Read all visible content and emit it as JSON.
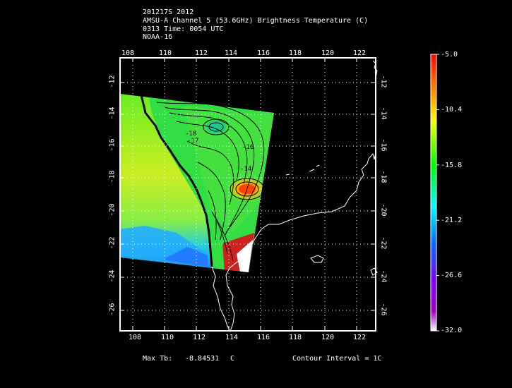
{
  "header": {
    "line1": "201217S 2012",
    "line2": "AMSU-A Channel 5 (53.6GHz) Brightness Temperature (C)",
    "line3": "0313 Time: 0054 UTC",
    "line4": "NOAA-16"
  },
  "map": {
    "lon_ticks": [
      "108",
      "110",
      "112",
      "114",
      "116",
      "118",
      "120",
      "122"
    ],
    "lat_ticks": [
      "-12",
      "-14",
      "-16",
      "-18",
      "-20",
      "-22",
      "-24",
      "-26"
    ],
    "contour_labels": [
      "-18",
      "-17",
      "-16",
      "-14"
    ],
    "colors": {
      "frame": "#ffffff",
      "background": "#000000",
      "grid": "#ffffff"
    }
  },
  "colorbar": {
    "labels": [
      "-5.0",
      "-10.4",
      "-15.8",
      "-21.2",
      "-26.6",
      "-32.0"
    ],
    "colors": [
      "#ff0000",
      "#ff8000",
      "#ffff00",
      "#00ff00",
      "#00ffff",
      "#0000ff",
      "#8000ff",
      "#ffffff"
    ]
  },
  "footer": {
    "max_tb_label": "Max Tb:",
    "max_tb_value": "-8.84531",
    "max_tb_unit": "C",
    "contour_interval": "Contour Interval = 1C"
  }
}
